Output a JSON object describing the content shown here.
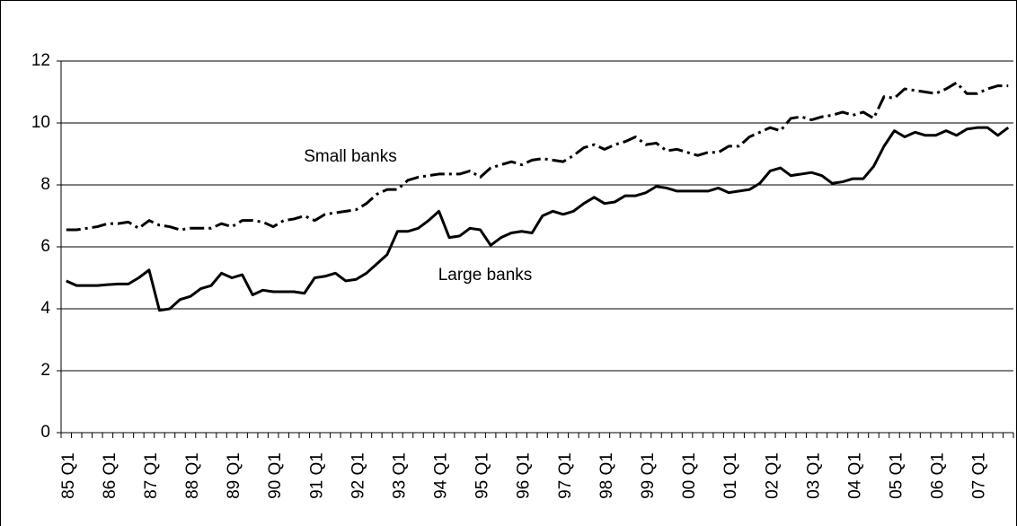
{
  "chart_data": {
    "type": "line",
    "categories": [
      "85 Q1",
      null,
      null,
      null,
      "86 Q1",
      null,
      null,
      null,
      "87 Q1",
      null,
      null,
      null,
      "88 Q1",
      null,
      null,
      null,
      "89 Q1",
      null,
      null,
      null,
      "90 Q1",
      null,
      null,
      null,
      "91 Q1",
      null,
      null,
      null,
      "92 Q1",
      null,
      null,
      null,
      "93 Q1",
      null,
      null,
      null,
      "94 Q1",
      null,
      null,
      null,
      "95 Q1",
      null,
      null,
      null,
      "96 Q1",
      null,
      null,
      null,
      "97 Q1",
      null,
      null,
      null,
      "98 Q1",
      null,
      null,
      null,
      "99 Q1",
      null,
      null,
      null,
      "00 Q1",
      null,
      null,
      null,
      "01 Q1",
      null,
      null,
      null,
      "02 Q1",
      null,
      null,
      null,
      "03 Q1",
      null,
      null,
      null,
      "04 Q1",
      null,
      null,
      null,
      "05 Q1",
      null,
      null,
      null,
      "06 Q1",
      null,
      null,
      null,
      "07 Q1",
      null,
      null,
      null
    ],
    "series": [
      {
        "name": "Small banks",
        "color": "#000000",
        "line_style": "dashed",
        "values": [
          6.55,
          6.55,
          6.6,
          6.65,
          6.75,
          6.75,
          6.8,
          6.6,
          6.85,
          6.7,
          6.65,
          6.55,
          6.6,
          6.6,
          6.6,
          6.75,
          6.65,
          6.85,
          6.85,
          6.8,
          6.65,
          6.85,
          6.9,
          7.0,
          6.85,
          7.05,
          7.1,
          7.15,
          7.2,
          7.4,
          7.7,
          7.85,
          7.85,
          8.15,
          8.25,
          8.3,
          8.35,
          8.35,
          8.35,
          8.45,
          8.25,
          8.55,
          8.65,
          8.75,
          8.65,
          8.8,
          8.85,
          8.8,
          8.75,
          8.95,
          9.2,
          9.3,
          9.15,
          9.3,
          9.4,
          9.55,
          9.3,
          9.35,
          9.1,
          9.15,
          9.05,
          8.95,
          9.05,
          9.05,
          9.25,
          9.25,
          9.55,
          9.7,
          9.85,
          9.75,
          10.15,
          10.2,
          10.1,
          10.2,
          10.25,
          10.35,
          10.25,
          10.35,
          10.15,
          10.85,
          10.8,
          11.1,
          11.05,
          11.0,
          10.95,
          11.1,
          11.3,
          10.95,
          10.95,
          11.1,
          11.2,
          11.2
        ]
      },
      {
        "name": "Large banks",
        "color": "#000000",
        "line_style": "solid",
        "values": [
          4.9,
          4.75,
          4.75,
          4.75,
          4.78,
          4.8,
          4.8,
          5.0,
          5.25,
          3.95,
          4.0,
          4.3,
          4.4,
          4.65,
          4.75,
          5.15,
          5.0,
          5.1,
          4.45,
          4.6,
          4.55,
          4.55,
          4.55,
          4.5,
          5.0,
          5.05,
          5.15,
          4.9,
          4.95,
          5.15,
          5.45,
          5.75,
          6.5,
          6.5,
          6.6,
          6.85,
          7.15,
          6.3,
          6.35,
          6.6,
          6.55,
          6.05,
          6.3,
          6.45,
          6.5,
          6.45,
          7.0,
          7.15,
          7.05,
          7.15,
          7.4,
          7.6,
          7.4,
          7.45,
          7.65,
          7.65,
          7.75,
          7.95,
          7.9,
          7.8,
          7.8,
          7.8,
          7.8,
          7.9,
          7.75,
          7.8,
          7.85,
          8.05,
          8.45,
          8.55,
          8.3,
          8.35,
          8.4,
          8.3,
          8.05,
          8.1,
          8.2,
          8.2,
          8.6,
          9.25,
          9.75,
          9.55,
          9.7,
          9.6,
          9.6,
          9.75,
          9.6,
          9.8,
          9.85,
          9.85,
          9.6,
          9.85
        ]
      }
    ],
    "ylim": [
      0,
      12
    ],
    "yticks": [
      0,
      2,
      4,
      6,
      8,
      10,
      12
    ],
    "grid": true
  }
}
